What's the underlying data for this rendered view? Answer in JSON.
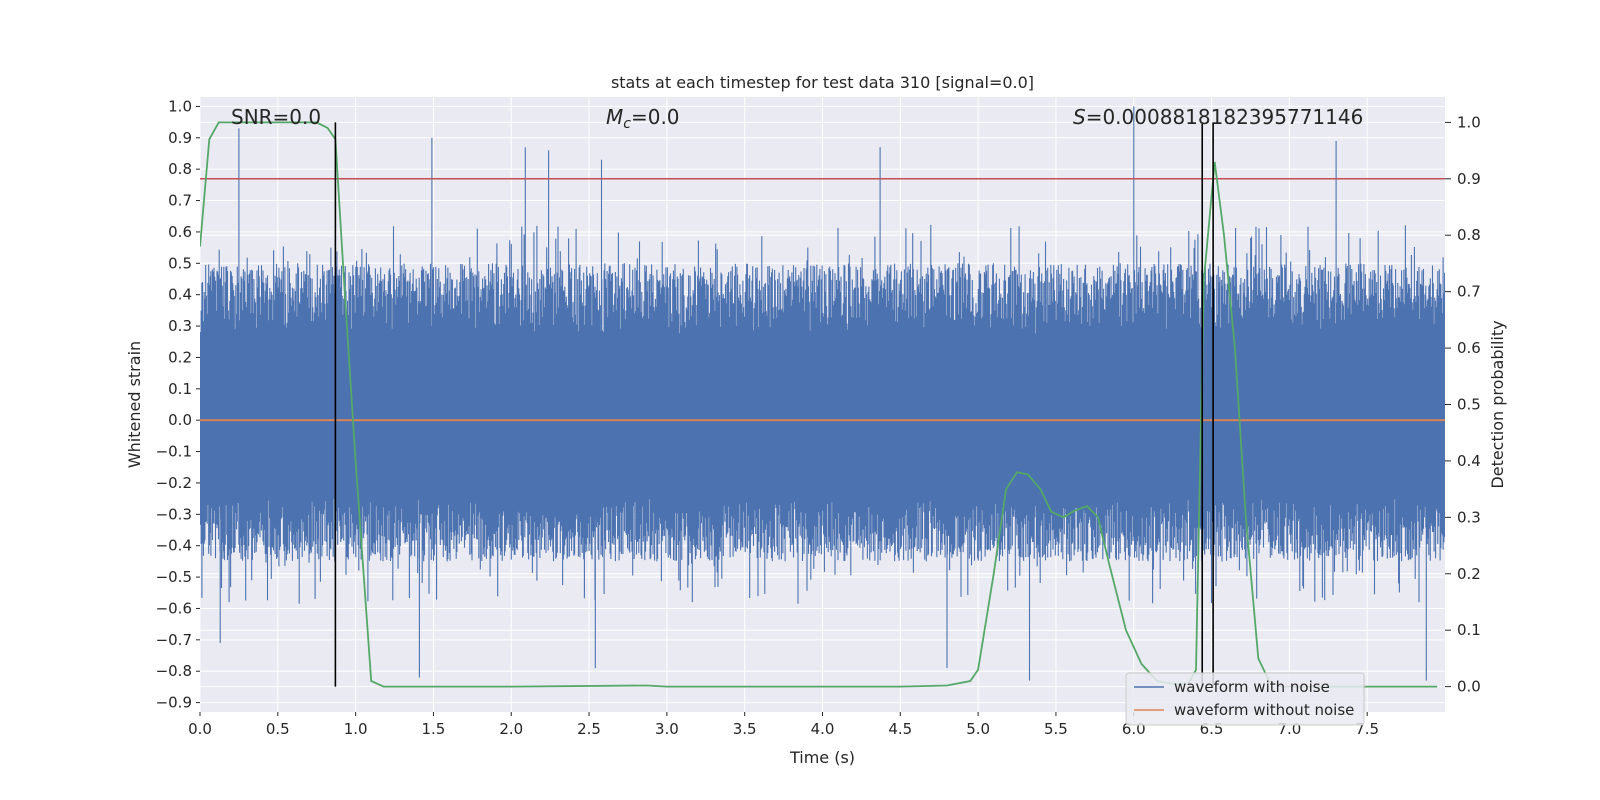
{
  "chart_data": {
    "type": "line",
    "title": "stats at each timestep for test data 310 [signal=0.0]",
    "xlabel": "Time (s)",
    "ylabel": "Whitened strain",
    "y2label": "Detection probability",
    "xlim": [
      0.0,
      8.0
    ],
    "ylim": [
      -0.93,
      1.03
    ],
    "y2lim": [
      -0.045,
      1.045
    ],
    "xticks": [
      "0.0",
      "0.5",
      "1.0",
      "1.5",
      "2.0",
      "2.5",
      "3.0",
      "3.5",
      "4.0",
      "4.5",
      "5.0",
      "5.5",
      "6.0",
      "6.5",
      "7.0",
      "7.5"
    ],
    "xtick_values": [
      0.0,
      0.5,
      1.0,
      1.5,
      2.0,
      2.5,
      3.0,
      3.5,
      4.0,
      4.5,
      5.0,
      5.5,
      6.0,
      6.5,
      7.0,
      7.5
    ],
    "yticks": [
      "1.0",
      "0.9",
      "0.8",
      "0.7",
      "0.6",
      "0.5",
      "0.4",
      "0.3",
      "0.2",
      "0.1",
      "0.0",
      "−0.1",
      "−0.2",
      "−0.3",
      "−0.4",
      "−0.5",
      "−0.6",
      "−0.7",
      "−0.8",
      "−0.9"
    ],
    "ytick_values": [
      1.0,
      0.9,
      0.8,
      0.7,
      0.6,
      0.5,
      0.4,
      0.3,
      0.2,
      0.1,
      0.0,
      -0.1,
      -0.2,
      -0.3,
      -0.4,
      -0.5,
      -0.6,
      -0.7,
      -0.8,
      -0.9
    ],
    "y2ticks": [
      "1.0",
      "0.9",
      "0.8",
      "0.7",
      "0.6",
      "0.5",
      "0.4",
      "0.3",
      "0.2",
      "0.1",
      "0.0"
    ],
    "y2tick_values": [
      1.0,
      0.9,
      0.8,
      0.7,
      0.6,
      0.5,
      0.4,
      0.3,
      0.2,
      0.1,
      0.0
    ],
    "grid": true,
    "annotations": {
      "snr": "SNR=0.0",
      "mc_symbol": "M",
      "mc_sub": "c",
      "mc_value": "=0.0",
      "s_symbol": "S",
      "s_value": "=0.0008818182395771146"
    },
    "threshold": 0.9,
    "vertical_lines_x": [
      0.87,
      6.44,
      6.51
    ],
    "series": [
      {
        "name": "waveform with noise",
        "color": "#4c72b0",
        "noise_band": [
          -0.45,
          0.5
        ],
        "max_peak": 1.0,
        "min_trough": -0.83,
        "peaks": [
          [
            0.25,
            0.93
          ],
          [
            1.49,
            0.9
          ],
          [
            2.09,
            0.87
          ],
          [
            2.24,
            0.86
          ],
          [
            2.58,
            0.83
          ],
          [
            4.37,
            0.87
          ],
          [
            6.0,
            1.0
          ],
          [
            7.3,
            0.89
          ]
        ],
        "troughs": [
          [
            0.13,
            -0.71
          ],
          [
            1.41,
            -0.82
          ],
          [
            2.54,
            -0.79
          ],
          [
            4.8,
            -0.79
          ],
          [
            5.33,
            -0.83
          ],
          [
            7.88,
            -0.83
          ]
        ]
      },
      {
        "name": "waveform without noise",
        "color": "#dd8452",
        "values": 0.0
      },
      {
        "name": "detection probability",
        "color": "#55a868",
        "x": [
          0.0,
          0.06,
          0.12,
          0.3,
          0.5,
          0.75,
          0.82,
          0.87,
          0.93,
          1.0,
          1.1,
          1.18,
          1.25,
          2.0,
          2.87,
          3.0,
          4.0,
          4.5,
          4.8,
          4.95,
          5.0,
          5.1,
          5.18,
          5.25,
          5.32,
          5.4,
          5.47,
          5.55,
          5.62,
          5.7,
          5.77,
          5.84,
          5.95,
          6.05,
          6.15,
          6.25,
          6.35,
          6.4,
          6.45,
          6.52,
          6.58,
          6.65,
          6.72,
          6.8,
          6.87,
          6.95,
          7.1,
          7.4,
          7.7,
          7.95
        ],
        "values": [
          0.78,
          0.97,
          1.0,
          1.0,
          1.0,
          1.0,
          0.99,
          0.97,
          0.7,
          0.4,
          0.01,
          0.0,
          0.0,
          0.0,
          0.002,
          0.0,
          0.0,
          0.0,
          0.002,
          0.01,
          0.03,
          0.2,
          0.35,
          0.38,
          0.376,
          0.35,
          0.31,
          0.3,
          0.312,
          0.32,
          0.3,
          0.22,
          0.1,
          0.04,
          0.01,
          0.005,
          0.005,
          0.03,
          0.72,
          0.93,
          0.8,
          0.6,
          0.3,
          0.05,
          0.01,
          0.0,
          0.0,
          0.0,
          0.0,
          0.0
        ]
      },
      {
        "name": "threshold",
        "color": "#c44e52",
        "values": 0.9
      }
    ],
    "legend": [
      "waveform with noise",
      "waveform without noise"
    ],
    "legend_position": "lower-right"
  }
}
